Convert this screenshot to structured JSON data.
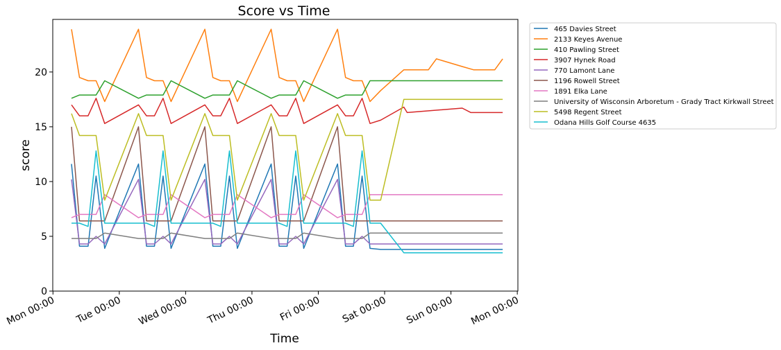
{
  "chart_data": {
    "type": "line",
    "title": "Score vs Time",
    "xlabel": "Time",
    "ylabel": "score",
    "x_ticks": [
      "Mon 00:00",
      "Tue 00:00",
      "Wed 00:00",
      "Thu 00:00",
      "Fri 00:00",
      "Sat 00:00",
      "Sun 00:00",
      "Mon 00:00"
    ],
    "y_ticks": [
      "0",
      "5",
      "10",
      "15",
      "20"
    ],
    "xlim_days": [
      -0.003,
      7.009
    ],
    "ylim": [
      0,
      24.8
    ],
    "legend_position": "outside-top-right",
    "grid": false,
    "series": [
      {
        "name": "465 Davies Street",
        "color": "#1f77b4",
        "x": [
          0.28,
          0.4,
          0.53,
          0.65,
          0.78,
          1.29,
          1.41,
          1.53,
          1.66,
          1.78,
          2.29,
          2.41,
          2.53,
          2.66,
          2.78,
          3.29,
          3.41,
          3.53,
          3.66,
          3.78,
          4.29,
          4.41,
          4.53,
          4.66,
          4.78,
          4.94,
          6.78
        ],
        "y": [
          11.6,
          4.1,
          4.1,
          10.5,
          3.9,
          11.6,
          4.1,
          4.1,
          10.5,
          3.9,
          11.6,
          4.1,
          4.1,
          10.5,
          3.9,
          11.6,
          4.1,
          4.1,
          10.5,
          3.9,
          11.6,
          4.1,
          4.1,
          10.5,
          3.9,
          3.8,
          3.8
        ]
      },
      {
        "name": "2133 Keyes Avenue",
        "color": "#ff7f0e",
        "x": [
          0.28,
          0.4,
          0.53,
          0.65,
          0.78,
          1.29,
          1.41,
          1.53,
          1.66,
          1.78,
          2.29,
          2.41,
          2.53,
          2.66,
          2.78,
          3.29,
          3.41,
          3.53,
          3.66,
          3.78,
          4.29,
          4.41,
          4.53,
          4.66,
          4.78,
          4.94,
          5.29,
          5.66,
          5.78,
          6.17,
          6.34,
          6.66,
          6.78
        ],
        "y": [
          23.9,
          19.5,
          19.2,
          19.2,
          17.3,
          23.9,
          19.5,
          19.2,
          19.2,
          17.3,
          23.9,
          19.5,
          19.2,
          19.2,
          17.3,
          23.9,
          19.5,
          19.2,
          19.2,
          17.3,
          23.9,
          19.5,
          19.2,
          19.2,
          17.3,
          18.3,
          20.2,
          20.2,
          21.2,
          20.5,
          20.2,
          20.2,
          21.2
        ]
      },
      {
        "name": "410 Pawling Street",
        "color": "#2ca02c",
        "x": [
          0.28,
          0.4,
          0.53,
          0.65,
          0.78,
          1.29,
          1.41,
          1.53,
          1.66,
          1.78,
          2.29,
          2.41,
          2.53,
          2.66,
          2.78,
          3.29,
          3.41,
          3.53,
          3.66,
          3.78,
          4.29,
          4.41,
          4.53,
          4.66,
          4.78,
          4.94,
          6.78
        ],
        "y": [
          17.6,
          17.9,
          17.9,
          17.9,
          19.2,
          17.6,
          17.9,
          17.9,
          17.9,
          19.2,
          17.6,
          17.9,
          17.9,
          17.9,
          19.2,
          17.6,
          17.9,
          17.9,
          17.9,
          19.2,
          17.6,
          17.9,
          17.9,
          17.9,
          19.2,
          19.2,
          19.2
        ]
      },
      {
        "name": "3907 Hynek Road",
        "color": "#d62728",
        "x": [
          0.28,
          0.4,
          0.53,
          0.65,
          0.78,
          1.29,
          1.41,
          1.53,
          1.66,
          1.78,
          2.29,
          2.41,
          2.53,
          2.66,
          2.78,
          3.29,
          3.41,
          3.53,
          3.66,
          3.78,
          4.29,
          4.41,
          4.53,
          4.66,
          4.78,
          4.94,
          5.29,
          5.34,
          6.17,
          6.3,
          6.78
        ],
        "y": [
          17.0,
          16.0,
          16.0,
          17.6,
          15.3,
          17.0,
          16.0,
          16.0,
          17.6,
          15.3,
          17.0,
          16.0,
          16.0,
          17.6,
          15.3,
          17.0,
          16.0,
          16.0,
          17.6,
          15.3,
          17.0,
          16.0,
          16.0,
          17.6,
          15.3,
          15.6,
          16.8,
          16.3,
          16.7,
          16.3,
          16.3
        ]
      },
      {
        "name": "770 Lamont Lane",
        "color": "#9467bd",
        "x": [
          0.28,
          0.4,
          0.53,
          0.65,
          0.78,
          1.29,
          1.41,
          1.53,
          1.66,
          1.78,
          2.29,
          2.41,
          2.53,
          2.66,
          2.78,
          3.29,
          3.41,
          3.53,
          3.66,
          3.78,
          4.29,
          4.41,
          4.53,
          4.66,
          4.78,
          4.94,
          6.78
        ],
        "y": [
          10.2,
          4.3,
          4.3,
          5.0,
          4.3,
          10.2,
          4.3,
          4.3,
          5.0,
          4.3,
          10.2,
          4.3,
          4.3,
          5.0,
          4.3,
          10.2,
          4.3,
          4.3,
          5.0,
          4.3,
          10.2,
          4.3,
          4.3,
          5.0,
          4.3,
          4.3,
          4.3
        ]
      },
      {
        "name": "1196 Rowell Street",
        "color": "#8c564b",
        "x": [
          0.28,
          0.4,
          0.53,
          0.65,
          0.78,
          1.29,
          1.41,
          1.53,
          1.66,
          1.78,
          2.29,
          2.41,
          2.53,
          2.66,
          2.78,
          3.29,
          3.41,
          3.53,
          3.66,
          3.78,
          4.29,
          4.41,
          4.53,
          4.66,
          4.78,
          4.94,
          6.78
        ],
        "y": [
          15.0,
          6.4,
          6.4,
          6.4,
          6.4,
          15.0,
          6.4,
          6.4,
          6.4,
          6.4,
          15.0,
          6.4,
          6.4,
          6.4,
          6.4,
          15.0,
          6.4,
          6.4,
          6.4,
          6.4,
          15.0,
          6.4,
          6.4,
          6.4,
          6.4,
          6.4,
          6.4
        ]
      },
      {
        "name": "1891 Elka Lane",
        "color": "#e377c2",
        "x": [
          0.28,
          0.4,
          0.53,
          0.65,
          0.78,
          1.29,
          1.41,
          1.53,
          1.66,
          1.78,
          2.29,
          2.41,
          2.53,
          2.66,
          2.78,
          3.29,
          3.41,
          3.53,
          3.66,
          3.78,
          4.29,
          4.41,
          4.53,
          4.66,
          4.78,
          4.94,
          6.78
        ],
        "y": [
          6.7,
          7.0,
          7.0,
          7.0,
          8.8,
          6.7,
          7.0,
          7.0,
          7.0,
          8.8,
          6.7,
          7.0,
          7.0,
          7.0,
          8.8,
          6.7,
          7.0,
          7.0,
          7.0,
          8.8,
          6.7,
          7.0,
          7.0,
          7.0,
          8.8,
          8.8,
          8.8
        ]
      },
      {
        "name": "University of Wisconsin Arboretum - Grady Tract Kirkwall Street",
        "color": "#7f7f7f",
        "x": [
          0.28,
          0.4,
          0.53,
          0.65,
          0.78,
          1.29,
          1.41,
          1.53,
          1.66,
          1.78,
          2.29,
          2.41,
          2.53,
          2.66,
          2.78,
          3.29,
          3.41,
          3.53,
          3.66,
          3.78,
          4.29,
          4.41,
          4.53,
          4.66,
          4.78,
          4.94,
          6.78
        ],
        "y": [
          4.8,
          4.8,
          4.8,
          4.8,
          5.3,
          4.8,
          4.8,
          4.8,
          4.8,
          5.3,
          4.8,
          4.8,
          4.8,
          4.8,
          5.3,
          4.8,
          4.8,
          4.8,
          4.8,
          5.3,
          4.8,
          4.8,
          4.8,
          4.8,
          5.3,
          5.3,
          5.3
        ]
      },
      {
        "name": "5498 Regent Street",
        "color": "#bcbd22",
        "x": [
          0.28,
          0.4,
          0.53,
          0.65,
          0.78,
          1.29,
          1.41,
          1.53,
          1.66,
          1.78,
          2.29,
          2.41,
          2.53,
          2.66,
          2.78,
          3.29,
          3.41,
          3.53,
          3.66,
          3.78,
          4.29,
          4.41,
          4.53,
          4.66,
          4.78,
          4.94,
          5.29,
          6.78
        ],
        "y": [
          16.2,
          14.2,
          14.2,
          14.2,
          8.3,
          16.2,
          14.2,
          14.2,
          14.2,
          8.3,
          16.2,
          14.2,
          14.2,
          14.2,
          8.3,
          16.2,
          14.2,
          14.2,
          14.2,
          8.3,
          16.2,
          14.2,
          14.2,
          14.2,
          8.3,
          8.3,
          17.5,
          17.5
        ]
      },
      {
        "name": "Odana Hills Golf Course 4635",
        "color": "#17becf",
        "x": [
          0.28,
          0.4,
          0.53,
          0.65,
          0.78,
          1.29,
          1.41,
          1.53,
          1.66,
          1.78,
          2.29,
          2.41,
          2.53,
          2.66,
          2.78,
          3.29,
          3.41,
          3.53,
          3.66,
          3.78,
          4.29,
          4.41,
          4.53,
          4.66,
          4.78,
          4.94,
          5.29,
          6.78
        ],
        "y": [
          6.2,
          6.2,
          5.9,
          12.8,
          6.2,
          6.2,
          6.2,
          5.9,
          12.8,
          6.2,
          6.2,
          6.2,
          5.9,
          12.8,
          6.2,
          6.2,
          6.2,
          5.9,
          12.8,
          6.2,
          6.2,
          6.2,
          5.9,
          12.8,
          6.2,
          6.2,
          3.5,
          3.5
        ]
      }
    ]
  }
}
